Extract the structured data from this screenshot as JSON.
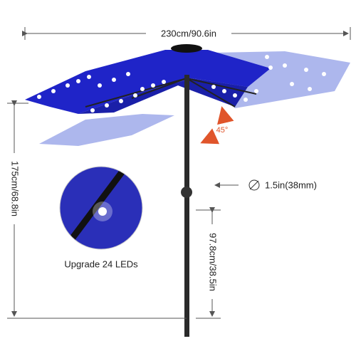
{
  "dimensions": {
    "width": "230cm/90.6in",
    "height": "175cm/68.8in",
    "pole_height": "97.8cm/38.5in",
    "pole_diameter": "1.5in(38mm)",
    "tilt_angle": "45°"
  },
  "callout": {
    "label": "Upgrade 24 LEDs"
  }
}
